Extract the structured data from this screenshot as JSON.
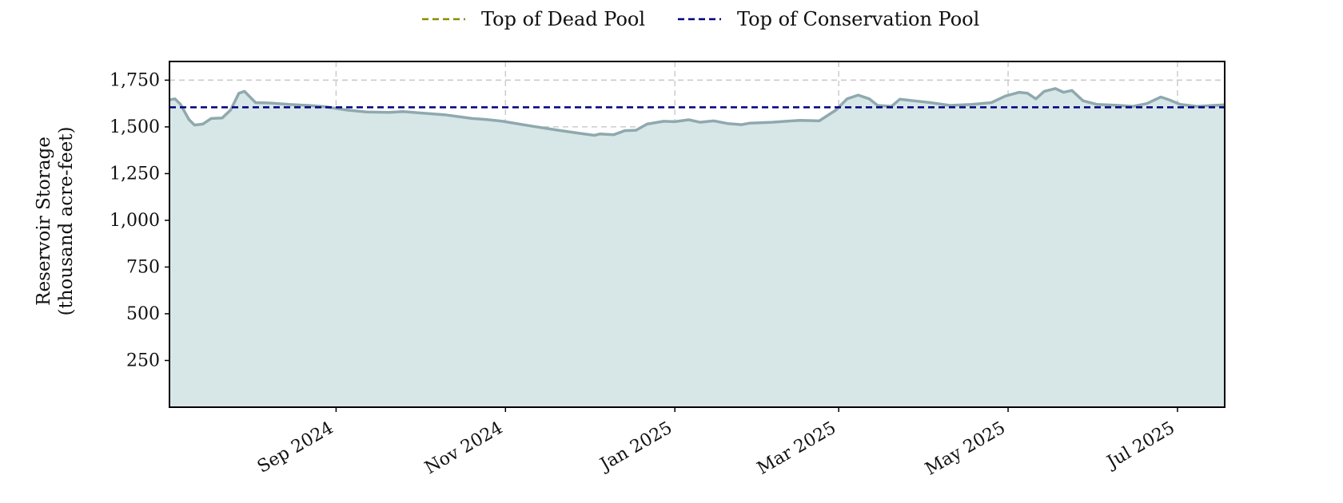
{
  "chart_data": {
    "type": "area",
    "title": "",
    "xlabel": "",
    "ylabel_lines": [
      "Reservoir Storage",
      "(thousand acre-feet)"
    ],
    "ylim": [
      0,
      1850
    ],
    "xlim": [
      "2024-07-03",
      "2025-07-18"
    ],
    "grid": true,
    "legend_position": "top-center",
    "legend": [
      {
        "name": "Top of Dead Pool",
        "color": "#8b8b00",
        "style": "dashed"
      },
      {
        "name": "Top of Conservation Pool",
        "color": "#00007f",
        "style": "dashed"
      }
    ],
    "reference_lines": [
      {
        "name": "Top of Conservation Pool",
        "value": 1605,
        "color": "#00007f"
      }
    ],
    "y_ticks": [
      {
        "value": 250,
        "label": "250"
      },
      {
        "value": 500,
        "label": "500"
      },
      {
        "value": 750,
        "label": "750"
      },
      {
        "value": 1000,
        "label": "1,000"
      },
      {
        "value": 1250,
        "label": "1,250"
      },
      {
        "value": 1500,
        "label": "1,500"
      },
      {
        "value": 1750,
        "label": "1,750"
      }
    ],
    "x_ticks": [
      {
        "date": "2024-09-01",
        "label": "Sep 2024"
      },
      {
        "date": "2024-11-01",
        "label": "Nov 2024"
      },
      {
        "date": "2025-01-01",
        "label": "Jan 2025"
      },
      {
        "date": "2025-03-01",
        "label": "Mar 2025"
      },
      {
        "date": "2025-05-01",
        "label": "May 2025"
      },
      {
        "date": "2025-07-01",
        "label": "Jul 2025"
      }
    ],
    "series": [
      {
        "line_color": "#8fa9ae",
        "fill_color": "#d7e6e7",
        "points": [
          [
            "2024-07-03",
            1645
          ],
          [
            "2024-07-05",
            1650
          ],
          [
            "2024-07-07",
            1620
          ],
          [
            "2024-07-10",
            1540
          ],
          [
            "2024-07-12",
            1510
          ],
          [
            "2024-07-15",
            1515
          ],
          [
            "2024-07-18",
            1545
          ],
          [
            "2024-07-22",
            1548
          ],
          [
            "2024-07-25",
            1590
          ],
          [
            "2024-07-28",
            1680
          ],
          [
            "2024-07-30",
            1690
          ],
          [
            "2024-08-03",
            1630
          ],
          [
            "2024-08-08",
            1628
          ],
          [
            "2024-08-15",
            1620
          ],
          [
            "2024-08-22",
            1615
          ],
          [
            "2024-08-28",
            1608
          ],
          [
            "2024-09-05",
            1590
          ],
          [
            "2024-09-12",
            1580
          ],
          [
            "2024-09-20",
            1578
          ],
          [
            "2024-09-25",
            1582
          ],
          [
            "2024-10-01",
            1575
          ],
          [
            "2024-10-10",
            1565
          ],
          [
            "2024-10-20",
            1545
          ],
          [
            "2024-10-25",
            1540
          ],
          [
            "2024-10-31",
            1530
          ],
          [
            "2024-11-10",
            1505
          ],
          [
            "2024-11-20",
            1482
          ],
          [
            "2024-11-28",
            1465
          ],
          [
            "2024-12-03",
            1455
          ],
          [
            "2024-12-05",
            1462
          ],
          [
            "2024-12-10",
            1458
          ],
          [
            "2024-12-14",
            1480
          ],
          [
            "2024-12-18",
            1482
          ],
          [
            "2024-12-22",
            1515
          ],
          [
            "2024-12-28",
            1530
          ],
          [
            "2025-01-01",
            1528
          ],
          [
            "2025-01-06",
            1538
          ],
          [
            "2025-01-10",
            1525
          ],
          [
            "2025-01-15",
            1532
          ],
          [
            "2025-01-20",
            1518
          ],
          [
            "2025-01-25",
            1512
          ],
          [
            "2025-01-28",
            1520
          ],
          [
            "2025-02-05",
            1525
          ],
          [
            "2025-02-10",
            1530
          ],
          [
            "2025-02-15",
            1535
          ],
          [
            "2025-02-22",
            1532
          ],
          [
            "2025-02-28",
            1590
          ],
          [
            "2025-03-04",
            1650
          ],
          [
            "2025-03-08",
            1670
          ],
          [
            "2025-03-12",
            1650
          ],
          [
            "2025-03-15",
            1615
          ],
          [
            "2025-03-20",
            1610
          ],
          [
            "2025-03-23",
            1648
          ],
          [
            "2025-03-28",
            1640
          ],
          [
            "2025-04-03",
            1630
          ],
          [
            "2025-04-10",
            1615
          ],
          [
            "2025-04-18",
            1620
          ],
          [
            "2025-04-25",
            1630
          ],
          [
            "2025-04-30",
            1665
          ],
          [
            "2025-05-05",
            1685
          ],
          [
            "2025-05-08",
            1680
          ],
          [
            "2025-05-11",
            1650
          ],
          [
            "2025-05-14",
            1690
          ],
          [
            "2025-05-18",
            1705
          ],
          [
            "2025-05-21",
            1685
          ],
          [
            "2025-05-24",
            1695
          ],
          [
            "2025-05-28",
            1640
          ],
          [
            "2025-06-02",
            1620
          ],
          [
            "2025-06-10",
            1615
          ],
          [
            "2025-06-15",
            1610
          ],
          [
            "2025-06-20",
            1625
          ],
          [
            "2025-06-25",
            1660
          ],
          [
            "2025-06-28",
            1645
          ],
          [
            "2025-07-02",
            1620
          ],
          [
            "2025-07-08",
            1610
          ],
          [
            "2025-07-18",
            1618
          ]
        ]
      }
    ]
  }
}
